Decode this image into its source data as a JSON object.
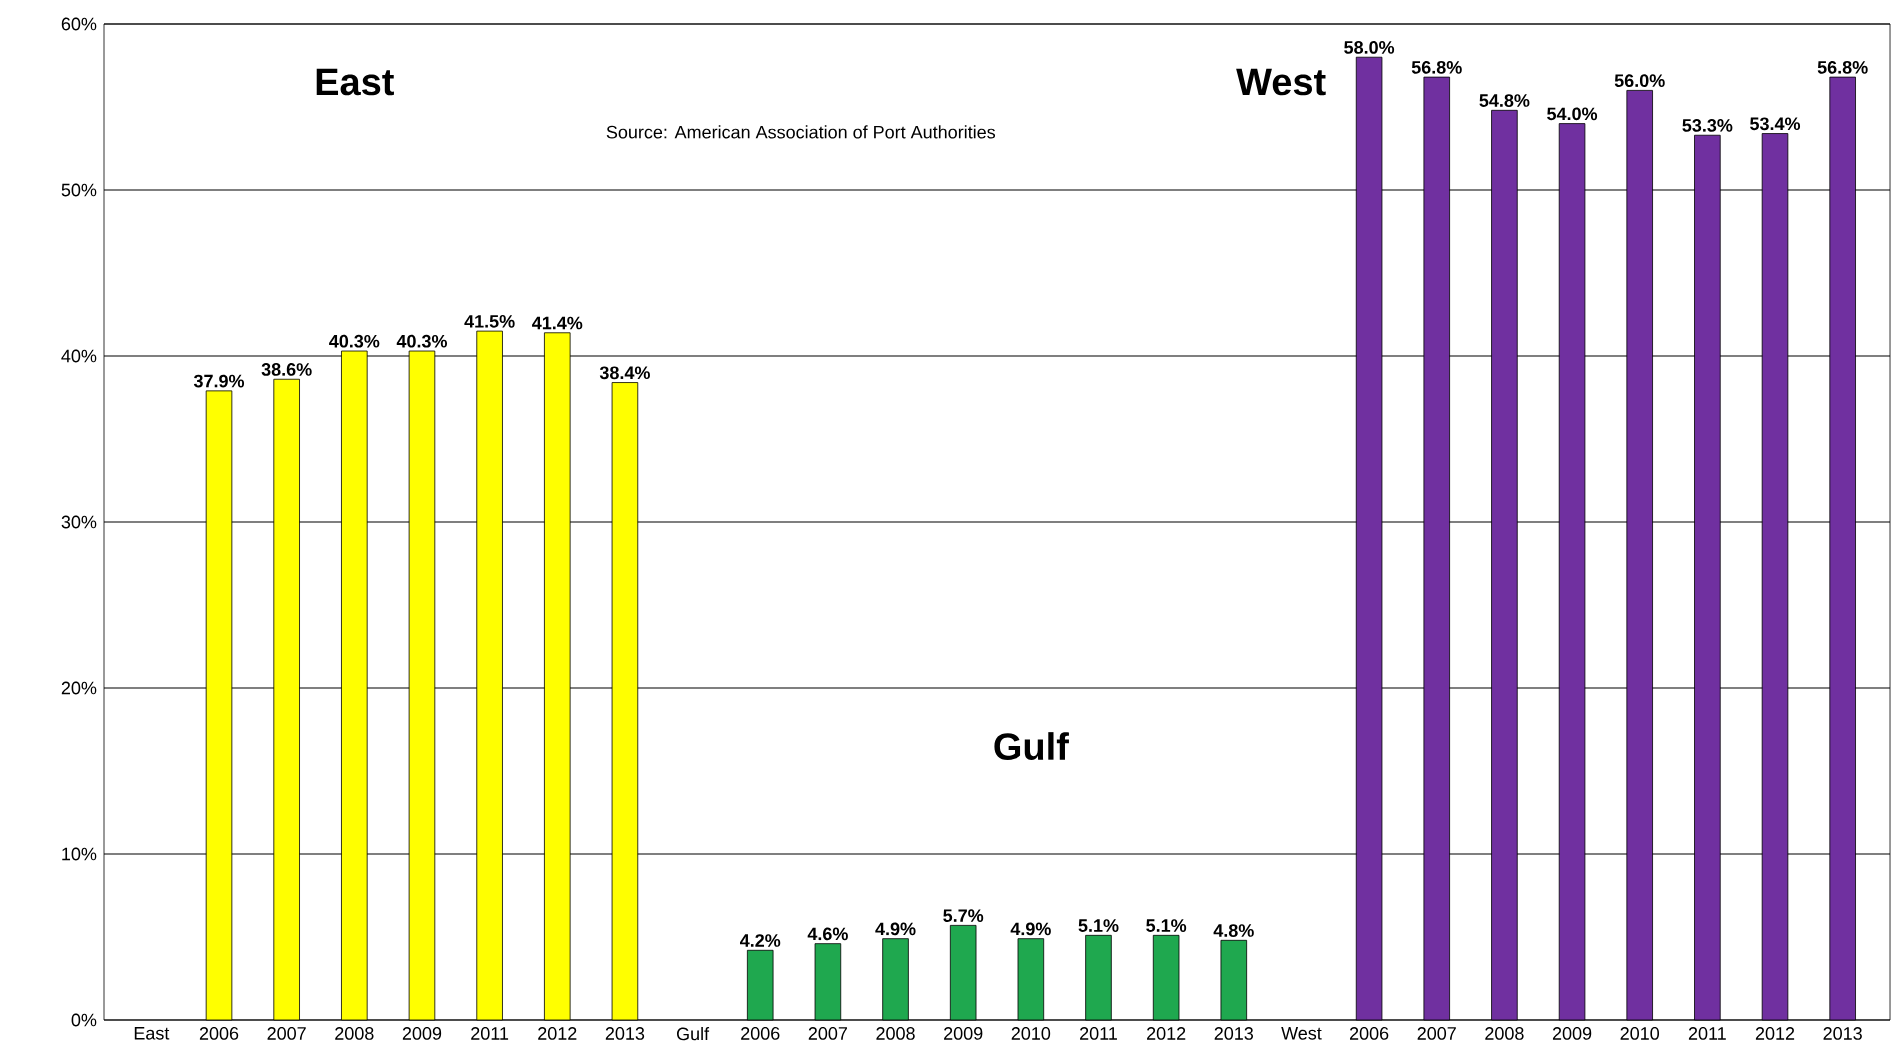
{
  "chart_data": {
    "type": "bar",
    "categories": [
      "East",
      "2006",
      "2007",
      "2008",
      "2009",
      "2011",
      "2012",
      "2013",
      "Gulf",
      "2006",
      "2007",
      "2008",
      "2009",
      "2010",
      "2011",
      "2012",
      "2013",
      "West",
      "2006",
      "2007",
      "2008",
      "2009",
      "2010",
      "2011",
      "2012",
      "2013"
    ],
    "values": [
      null,
      37.9,
      38.6,
      40.3,
      40.3,
      41.5,
      41.4,
      38.4,
      null,
      4.2,
      4.6,
      4.9,
      5.7,
      4.9,
      5.1,
      5.1,
      4.8,
      null,
      58.0,
      56.8,
      54.8,
      54.0,
      56.0,
      53.3,
      53.4,
      56.8
    ],
    "value_labels": [
      null,
      "37.9%",
      "38.6%",
      "40.3%",
      "40.3%",
      "41.5%",
      "41.4%",
      "38.4%",
      null,
      "4.2%",
      "4.6%",
      "4.9%",
      "5.7%",
      "4.9%",
      "5.1%",
      "5.1%",
      "4.8%",
      null,
      "58.0%",
      "56.8%",
      "54.8%",
      "54.0%",
      "56.0%",
      "53.3%",
      "53.4%",
      "56.8%"
    ],
    "colors": [
      null,
      "#ffff00",
      "#ffff00",
      "#ffff00",
      "#ffff00",
      "#ffff00",
      "#ffff00",
      "#ffff00",
      null,
      "#1fa84f",
      "#1fa84f",
      "#1fa84f",
      "#1fa84f",
      "#1fa84f",
      "#1fa84f",
      "#1fa84f",
      "#1fa84f",
      null,
      "#7030a0",
      "#7030a0",
      "#7030a0",
      "#7030a0",
      "#7030a0",
      "#7030a0",
      "#7030a0",
      "#7030a0"
    ],
    "ylim": [
      0,
      60
    ],
    "yticks": [
      {
        "value": 0,
        "label": "0%"
      },
      {
        "value": 10,
        "label": "10%"
      },
      {
        "value": 20,
        "label": "20%"
      },
      {
        "value": 30,
        "label": "30%"
      },
      {
        "value": 40,
        "label": "40%"
      },
      {
        "value": 50,
        "label": "50%"
      },
      {
        "value": 60,
        "label": "60%"
      }
    ],
    "grid": "y",
    "annotations": [
      "East",
      "West",
      "Gulf",
      "Source: American Association of Port Authorities"
    ]
  }
}
